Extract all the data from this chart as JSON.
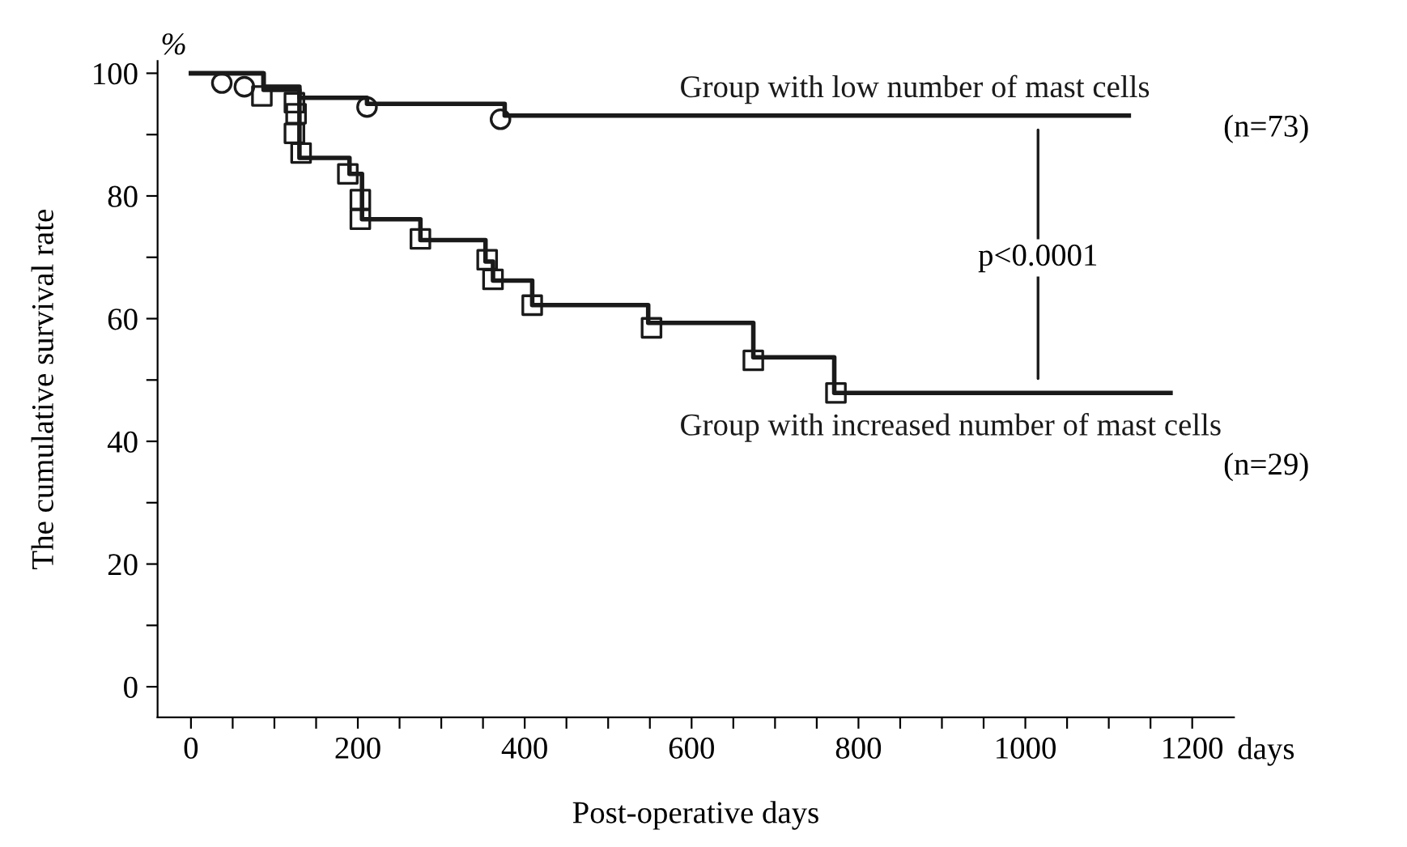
{
  "chart_data": {
    "type": "step",
    "xlabel": "Post-operative days",
    "ylabel": "The cumulative survival rate",
    "xlim": [
      -40,
      1250
    ],
    "ylim": [
      -5,
      102
    ],
    "xticks": [
      0,
      {
        "value": 50,
        "label": null
      },
      {
        "value": 100,
        "label": null
      },
      {
        "value": 150,
        "label": null
      },
      200,
      {
        "value": 250,
        "label": null
      },
      {
        "value": 300,
        "label": null
      },
      {
        "value": 350,
        "label": null
      },
      400,
      {
        "value": 450,
        "label": null
      },
      {
        "value": 500,
        "label": null
      },
      {
        "value": 550,
        "label": null
      },
      600,
      {
        "value": 650,
        "label": null
      },
      {
        "value": 700,
        "label": null
      },
      {
        "value": 750,
        "label": null
      },
      800,
      {
        "value": 850,
        "label": null
      },
      {
        "value": 900,
        "label": null
      },
      {
        "value": 950,
        "label": null
      },
      1000,
      {
        "value": 1050,
        "label": null
      },
      {
        "value": 1100,
        "label": null
      },
      {
        "value": 1150,
        "label": null
      },
      1200
    ],
    "yticks": [
      0,
      {
        "value": 10,
        "label": null
      },
      20,
      {
        "value": 30,
        "label": null
      },
      40,
      {
        "value": 50,
        "label": null
      },
      60,
      {
        "value": 70,
        "label": null
      },
      80,
      {
        "value": 90,
        "label": null
      },
      100
    ],
    "grid": false,
    "series": [
      {
        "name": "Group with low number of mast cells",
        "color": "#1a1a1a",
        "marker": "none",
        "x": [
          0,
          87,
          130,
          211,
          376,
          1124
        ],
        "values": [
          100,
          97.8,
          96,
          95,
          93.1,
          93.1
        ]
      },
      {
        "name": "Group with increased number of mast cells",
        "color": "#1a1a1a",
        "marker": "none",
        "x": [
          0,
          87,
          130,
          190,
          205,
          275,
          353,
          362,
          409,
          548,
          674,
          771,
          1174
        ],
        "values": [
          100,
          97.3,
          86.2,
          83.6,
          76.2,
          72.8,
          69.3,
          66.2,
          62.2,
          59.3,
          53.7,
          47.9,
          47.9
        ]
      },
      {
        "type": "scatter",
        "color": "#1a1a1a",
        "marker": "circle",
        "x": [
          37,
          64,
          211,
          371
        ],
        "values": [
          98.4,
          97.8,
          94.5,
          92.5
        ]
      },
      {
        "type": "scatter",
        "color": "#1a1a1a",
        "marker": "square",
        "x": [
          85,
          124,
          126,
          124,
          132,
          188,
          203,
          203,
          275,
          355,
          362,
          409,
          552,
          674,
          773
        ],
        "values": [
          96.3,
          95.2,
          93.4,
          90.2,
          87.0,
          83.6,
          79.4,
          76.2,
          73.0,
          69.6,
          66.4,
          62.2,
          58.5,
          53.2,
          47.9
        ]
      }
    ],
    "annotations": [
      "(n=73)",
      "(n=29)",
      "p<0.0001",
      "%",
      "days"
    ]
  }
}
